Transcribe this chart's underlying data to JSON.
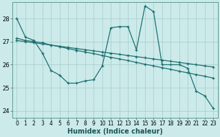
{
  "xlabel": "Humidex (Indice chaleur)",
  "background_color": "#cceaea",
  "grid_color": "#aacfcf",
  "line_color": "#1a6e6e",
  "xlim": [
    -0.5,
    23.5
  ],
  "ylim": [
    23.7,
    28.7
  ],
  "yticks": [
    24,
    25,
    26,
    27,
    28
  ],
  "xticks": [
    0,
    1,
    2,
    3,
    4,
    5,
    6,
    7,
    8,
    9,
    10,
    11,
    12,
    13,
    14,
    15,
    16,
    17,
    18,
    19,
    20,
    21,
    22,
    23
  ],
  "line1_x": [
    0,
    1,
    2,
    3,
    4,
    5,
    6,
    7,
    8,
    9,
    10,
    11,
    12,
    13,
    14,
    15,
    16,
    17,
    18,
    19,
    20,
    21,
    22,
    23
  ],
  "line1_y": [
    28.0,
    27.2,
    27.05,
    26.5,
    25.75,
    25.55,
    25.2,
    25.2,
    25.3,
    25.35,
    25.95,
    27.6,
    27.65,
    27.65,
    26.65,
    28.55,
    28.3,
    26.0,
    26.0,
    26.0,
    25.85,
    24.85,
    24.65,
    24.1
  ],
  "line2_x": [
    0,
    1,
    2,
    3,
    4,
    5,
    6,
    7,
    8,
    9,
    10,
    11,
    12,
    13,
    14,
    15,
    16,
    17,
    18,
    19,
    20,
    21,
    22,
    23
  ],
  "line2_y": [
    27.15,
    27.05,
    27.0,
    26.95,
    26.85,
    26.78,
    26.7,
    26.62,
    26.55,
    26.48,
    26.4,
    26.32,
    26.25,
    26.18,
    26.1,
    26.02,
    25.95,
    25.87,
    25.8,
    25.72,
    25.65,
    25.57,
    25.5,
    25.42
  ],
  "line3_x": [
    0,
    1,
    2,
    3,
    4,
    5,
    6,
    7,
    8,
    9,
    10,
    11,
    12,
    13,
    14,
    15,
    16,
    17,
    18,
    19,
    20,
    21,
    22,
    23
  ],
  "line3_y": [
    27.05,
    27.0,
    26.95,
    26.9,
    26.85,
    26.8,
    26.75,
    26.7,
    26.65,
    26.6,
    26.55,
    26.5,
    26.45,
    26.4,
    26.35,
    26.3,
    26.25,
    26.2,
    26.15,
    26.1,
    26.05,
    26.0,
    25.95,
    25.9
  ]
}
